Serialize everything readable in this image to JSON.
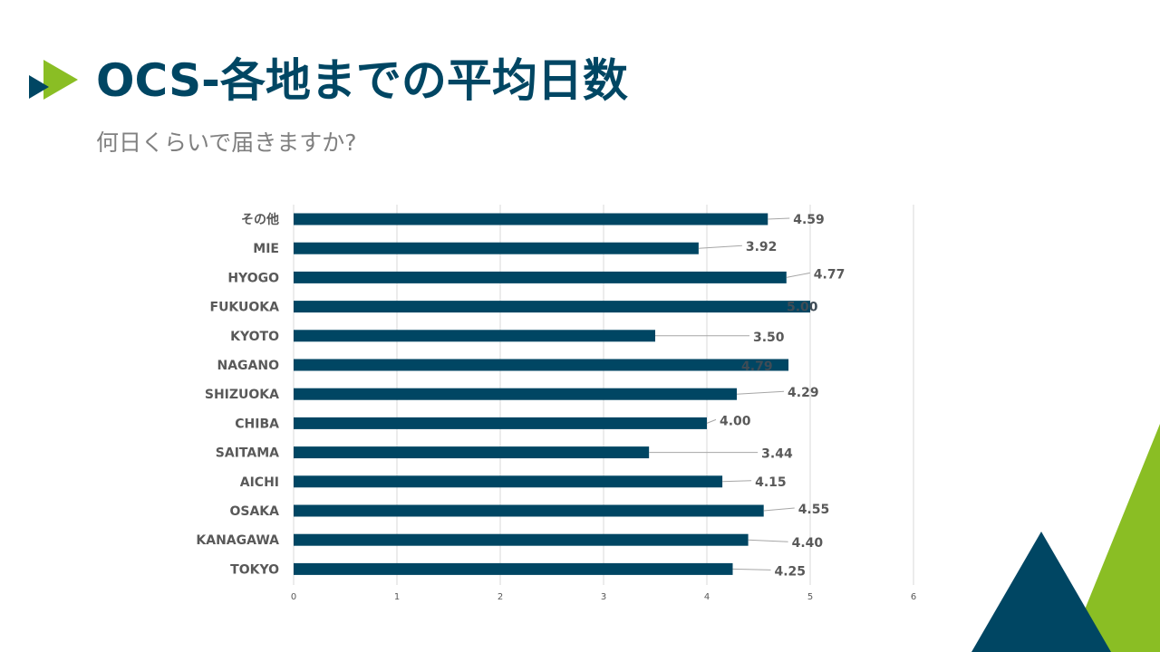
{
  "slide": {
    "title": "OCS-各地までの平均日数",
    "subtitle": "何日くらいで届きますか?"
  },
  "colors": {
    "bar": "#004663",
    "title": "#004663",
    "accent_green": "#8ABE24",
    "axis_text": "#595959",
    "grid": "#D9D9D9"
  },
  "icons": {
    "logo": "double-triangle-arrow-icon",
    "decoration": "corner-triangles"
  },
  "chart_data": {
    "type": "bar",
    "orientation": "horizontal",
    "categories": [
      "その他",
      "MIE",
      "HYOGO",
      "FUKUOKA",
      "KYOTO",
      "NAGANO",
      "SHIZUOKA",
      "CHIBA",
      "SAITAMA",
      "AICHI",
      "OSAKA",
      "KANAGAWA",
      "TOKYO"
    ],
    "values": [
      4.59,
      3.92,
      4.77,
      5.0,
      3.5,
      4.79,
      4.29,
      4.0,
      3.44,
      4.15,
      4.55,
      4.4,
      4.25
    ],
    "data_labels": [
      "4.59",
      "3.92",
      "4.77",
      "5.00",
      "3.50",
      "4.79",
      "4.29",
      "4.00",
      "3.44",
      "4.15",
      "4.55",
      "4.40",
      "4.25"
    ],
    "x_ticks": [
      "0",
      "1",
      "2",
      "3",
      "4",
      "5",
      "6"
    ],
    "xlim": [
      0,
      6
    ],
    "grid": "vertical",
    "legend": "none",
    "title": "",
    "xlabel": "",
    "ylabel": ""
  }
}
